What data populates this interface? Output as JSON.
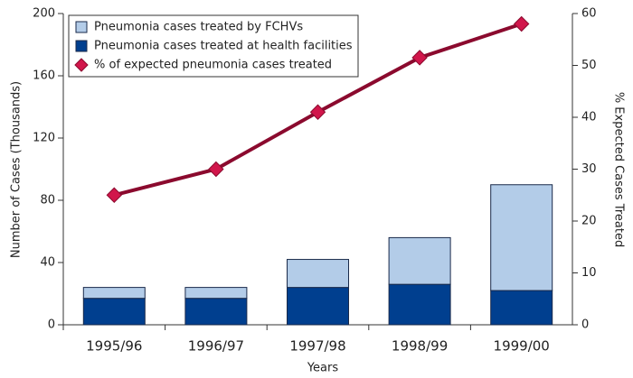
{
  "chart_data": {
    "type": "bar",
    "categories": [
      "1995/96",
      "1996/97",
      "1997/98",
      "1998/99",
      "1999/00"
    ],
    "series": [
      {
        "name": "Pneumonia cases treated by FCHVs",
        "color": "#b3cce8",
        "type": "bar",
        "values": [
          7,
          7,
          18,
          30,
          68
        ]
      },
      {
        "name": "Pneumonia cases treated at health facilities",
        "color": "#003f8f",
        "type": "bar",
        "values": [
          17,
          17,
          24,
          26,
          22
        ]
      },
      {
        "name": "% of expected pneumonia cases treated",
        "color": "#8b0a2e",
        "marker_color": "#d1164b",
        "type": "line",
        "axis": "y2",
        "values": [
          25,
          30,
          41,
          51.5,
          58
        ]
      }
    ],
    "xlabel": "Years",
    "ylabel": "Number of Cases (Thousands)",
    "y2label": "% Expected Cases Treated",
    "ylim": [
      0,
      200
    ],
    "yticks": [
      0,
      40,
      80,
      120,
      160,
      200
    ],
    "y2lim": [
      0,
      60
    ],
    "y2ticks": [
      0,
      10,
      20,
      30,
      40,
      50,
      60
    ],
    "legend": "upper left"
  }
}
